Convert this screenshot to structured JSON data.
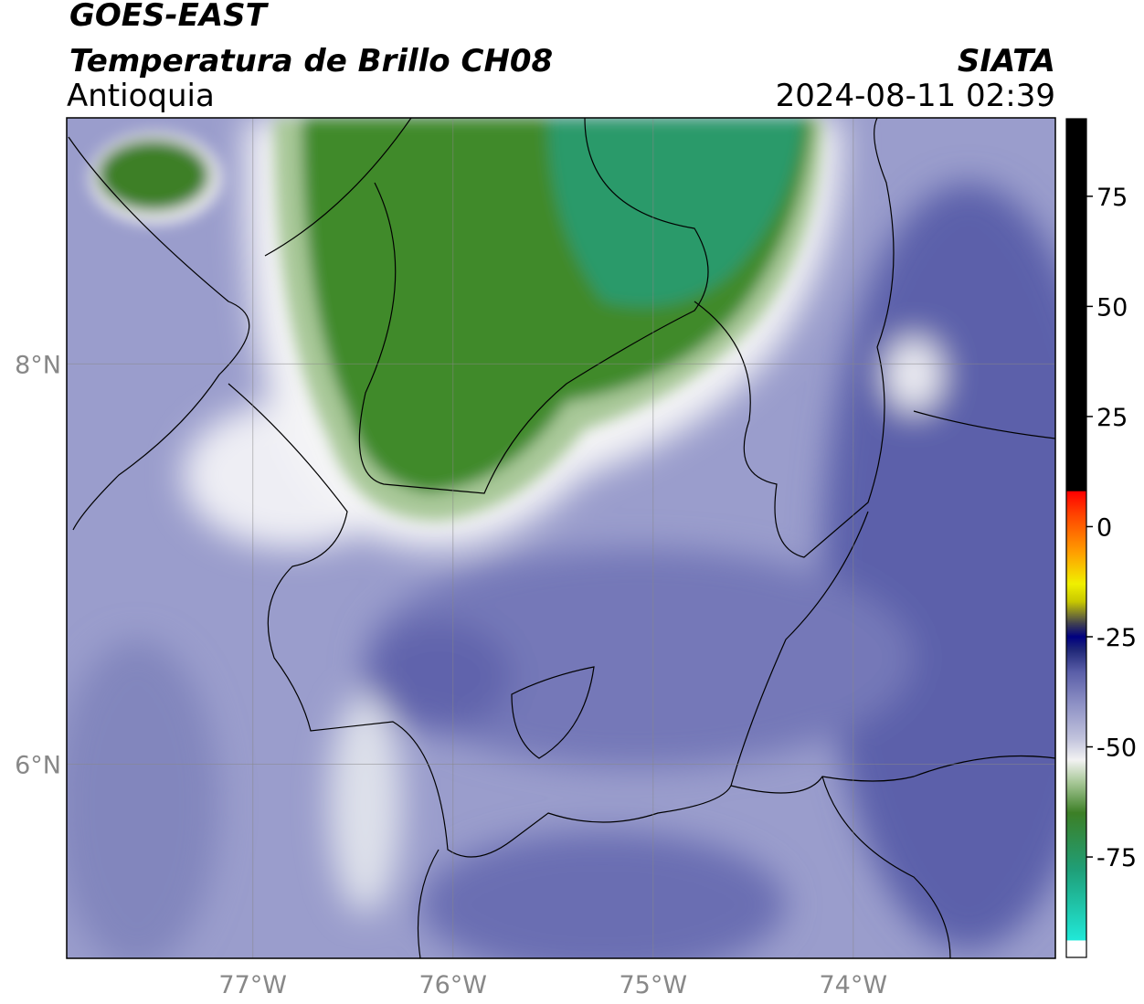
{
  "header": {
    "satellite": "GOES-EAST",
    "product": "Temperatura de Brillo CH08",
    "region": "Antioquia",
    "agency": "SIATA",
    "datetime": "2024-08-11 02:39"
  },
  "map": {
    "xlim": [
      -77.93,
      -72.99
    ],
    "ylim": [
      5.03,
      9.23
    ],
    "grid": true,
    "lon_ticks": [
      {
        "value": -77,
        "label": "77°W"
      },
      {
        "value": -76,
        "label": "76°W"
      },
      {
        "value": -75,
        "label": "75°W"
      },
      {
        "value": -74,
        "label": "74°W"
      }
    ],
    "lat_ticks": [
      {
        "value": 8,
        "label": "8°N"
      },
      {
        "value": 6,
        "label": "6°N"
      }
    ]
  },
  "colorbar": {
    "lim": [
      -97.8,
      92.6
    ],
    "ticks": [
      75,
      50,
      25,
      0,
      -25,
      -50,
      -75
    ],
    "stops": [
      {
        "value": -97.8,
        "color": "#ffffff"
      },
      {
        "value": -94,
        "color": "#ffffff"
      },
      {
        "value": -93.9,
        "color": "#20e8d8"
      },
      {
        "value": -78,
        "color": "#1f9f78"
      },
      {
        "value": -65,
        "color": "#3c7f26"
      },
      {
        "value": -58,
        "color": "#a8c898"
      },
      {
        "value": -53,
        "color": "#f2f2f2"
      },
      {
        "value": -48,
        "color": "#c0c2dc"
      },
      {
        "value": -40,
        "color": "#8c8fc4"
      },
      {
        "value": -33,
        "color": "#5a5ea8"
      },
      {
        "value": -28,
        "color": "#202878"
      },
      {
        "value": -25,
        "color": "#000080"
      },
      {
        "value": -22,
        "color": "#404050"
      },
      {
        "value": -17,
        "color": "#c8c800"
      },
      {
        "value": -13,
        "color": "#f0f000"
      },
      {
        "value": -6,
        "color": "#ffa000"
      },
      {
        "value": 3,
        "color": "#ff4000"
      },
      {
        "value": 8,
        "color": "#ff0000"
      },
      {
        "value": 8.1,
        "color": "#000000"
      },
      {
        "value": 92.6,
        "color": "#000000"
      }
    ]
  }
}
